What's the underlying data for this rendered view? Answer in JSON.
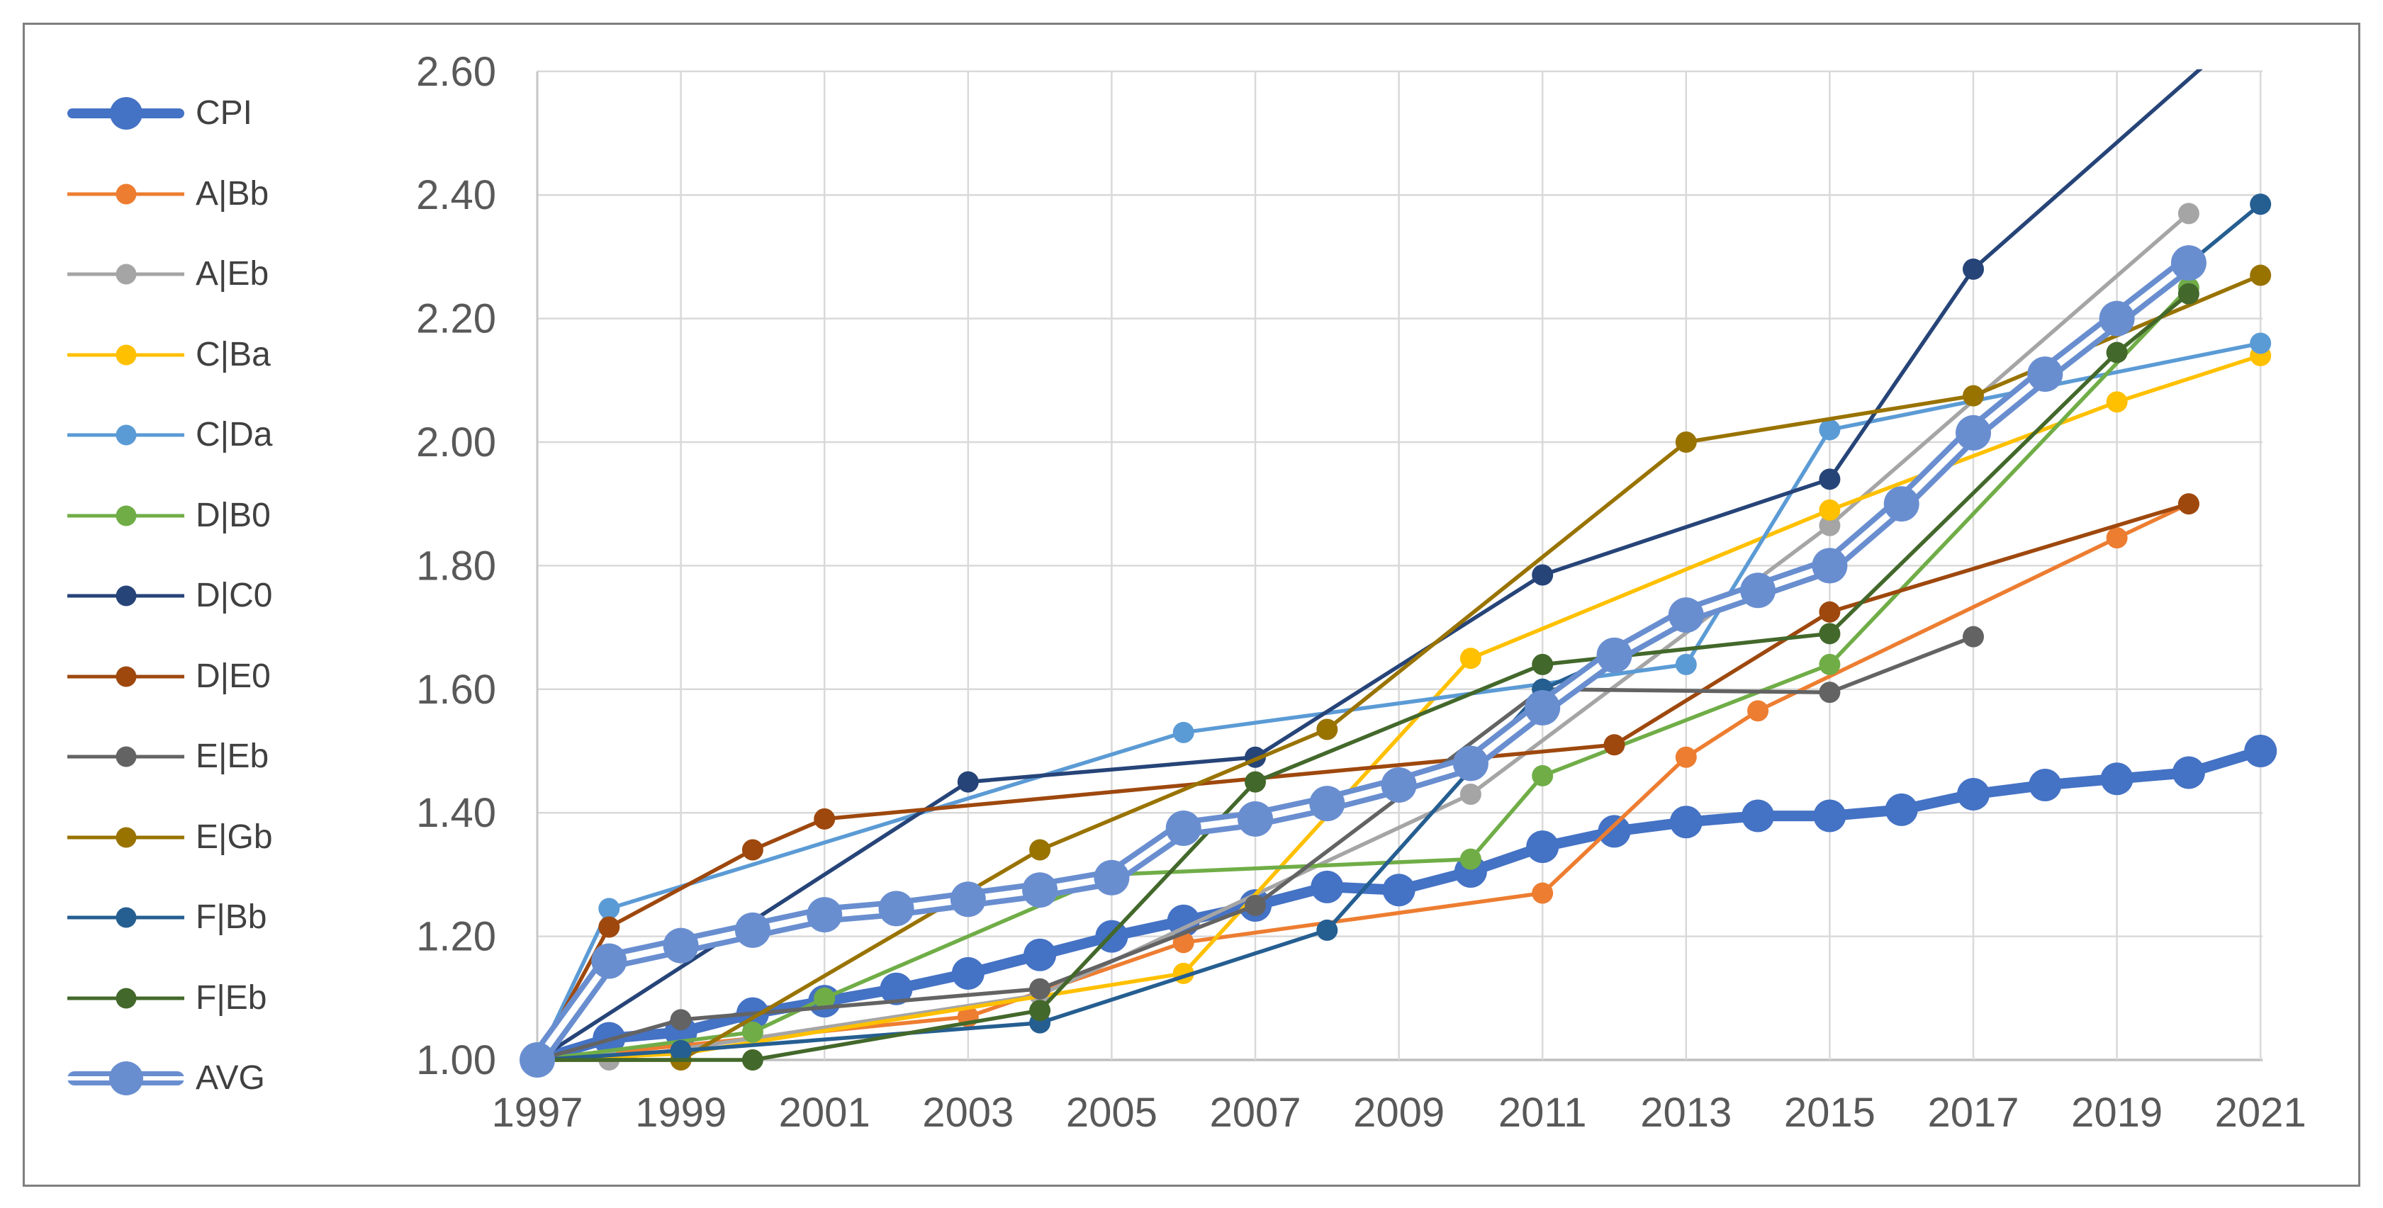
{
  "chart_data": {
    "type": "line",
    "title": "",
    "xlabel": "",
    "ylabel": "",
    "grid": "on",
    "legend_position": "left",
    "x_range": [
      1997,
      2021
    ],
    "y_range": [
      1.0,
      2.6
    ],
    "x_ticks": [
      "1997",
      "1999",
      "2001",
      "2003",
      "2005",
      "2007",
      "2009",
      "2011",
      "2013",
      "2015",
      "2017",
      "2019",
      "2021"
    ],
    "y_ticks": [
      "1.00",
      "1.20",
      "1.40",
      "1.60",
      "1.80",
      "2.00",
      "2.20",
      "2.40",
      "2.60"
    ],
    "series": [
      {
        "name": "CPI",
        "color": "#4472C4",
        "style": "cpi",
        "points": [
          [
            1997,
            1.0
          ],
          [
            1998,
            1.035
          ],
          [
            1999,
            1.045
          ],
          [
            2000,
            1.075
          ],
          [
            2001,
            1.095
          ],
          [
            2002,
            1.115
          ],
          [
            2003,
            1.14
          ],
          [
            2004,
            1.17
          ],
          [
            2005,
            1.2
          ],
          [
            2006,
            1.225
          ],
          [
            2007,
            1.25
          ],
          [
            2008,
            1.28
          ],
          [
            2009,
            1.275
          ],
          [
            2010,
            1.305
          ],
          [
            2011,
            1.345
          ],
          [
            2012,
            1.37
          ],
          [
            2013,
            1.385
          ],
          [
            2014,
            1.395
          ],
          [
            2015,
            1.395
          ],
          [
            2016,
            1.405
          ],
          [
            2017,
            1.43
          ],
          [
            2018,
            1.445
          ],
          [
            2019,
            1.455
          ],
          [
            2020,
            1.465
          ],
          [
            2021,
            1.5
          ]
        ]
      },
      {
        "name": "A|Bb",
        "color": "#ED7D31",
        "style": "normal",
        "points": [
          [
            1997,
            1.0
          ],
          [
            2003,
            1.07
          ],
          [
            2006,
            1.19
          ],
          [
            2011,
            1.27
          ],
          [
            2013,
            1.49
          ],
          [
            2014,
            1.565
          ],
          [
            2019,
            1.845
          ],
          [
            2020,
            1.9
          ]
        ]
      },
      {
        "name": "A|Eb",
        "color": "#A5A5A5",
        "style": "normal",
        "points": [
          [
            1997,
            1.0
          ],
          [
            1998,
            1.0
          ],
          [
            2004,
            1.105
          ],
          [
            2010,
            1.43
          ],
          [
            2015,
            1.865
          ],
          [
            2020,
            2.37
          ]
        ]
      },
      {
        "name": "C|Ba",
        "color": "#FFC000",
        "style": "normal",
        "points": [
          [
            1997,
            1.0
          ],
          [
            1999,
            1.01
          ],
          [
            2006,
            1.14
          ],
          [
            2010,
            1.65
          ],
          [
            2015,
            1.89
          ],
          [
            2019,
            2.065
          ],
          [
            2021,
            2.14
          ]
        ]
      },
      {
        "name": "C|Da",
        "color": "#5B9BD5",
        "style": "normal",
        "points": [
          [
            1997,
            1.0
          ],
          [
            1998,
            1.245
          ],
          [
            2006,
            1.53
          ],
          [
            2013,
            1.64
          ],
          [
            2015,
            2.02
          ],
          [
            2021,
            2.16
          ]
        ]
      },
      {
        "name": "D|B0",
        "color": "#70AD47",
        "style": "normal",
        "points": [
          [
            1997,
            1.0
          ],
          [
            2000,
            1.045
          ],
          [
            2001,
            1.1
          ],
          [
            2005,
            1.3
          ],
          [
            2010,
            1.325
          ],
          [
            2011,
            1.46
          ],
          [
            2015,
            1.64
          ],
          [
            2020,
            2.25
          ]
        ]
      },
      {
        "name": "D|C0",
        "color": "#264478",
        "style": "normal",
        "points": [
          [
            1997,
            1.0
          ],
          [
            2003,
            1.45
          ],
          [
            2007,
            1.49
          ],
          [
            2011,
            1.785
          ],
          [
            2015,
            1.94
          ],
          [
            2017,
            2.28
          ],
          [
            2021,
            2.69
          ]
        ]
      },
      {
        "name": "D|E0",
        "color": "#9E480E",
        "style": "normal",
        "points": [
          [
            1997,
            1.0
          ],
          [
            1998,
            1.215
          ],
          [
            2000,
            1.34
          ],
          [
            2001,
            1.39
          ],
          [
            2012,
            1.51
          ],
          [
            2015,
            1.725
          ],
          [
            2020,
            1.9
          ]
        ]
      },
      {
        "name": "E|Eb",
        "color": "#636363",
        "style": "normal",
        "points": [
          [
            1997,
            1.0
          ],
          [
            1999,
            1.065
          ],
          [
            2004,
            1.115
          ],
          [
            2007,
            1.25
          ],
          [
            2011,
            1.6
          ],
          [
            2015,
            1.595
          ],
          [
            2017,
            1.685
          ]
        ]
      },
      {
        "name": "E|Gb",
        "color": "#997300",
        "style": "normal",
        "points": [
          [
            1997,
            1.0
          ],
          [
            1999,
            1.0
          ],
          [
            2004,
            1.34
          ],
          [
            2008,
            1.535
          ],
          [
            2013,
            2.0
          ],
          [
            2017,
            2.075
          ],
          [
            2021,
            2.27
          ]
        ]
      },
      {
        "name": "F|Bb",
        "color": "#255E91",
        "style": "normal",
        "points": [
          [
            1997,
            1.0
          ],
          [
            1999,
            1.015
          ],
          [
            2004,
            1.06
          ],
          [
            2008,
            1.21
          ],
          [
            2011,
            1.6
          ],
          [
            2015,
            1.81
          ],
          [
            2021,
            2.385
          ]
        ]
      },
      {
        "name": "F|Eb",
        "color": "#43682B",
        "style": "normal",
        "points": [
          [
            1997,
            1.0
          ],
          [
            2000,
            1.0
          ],
          [
            2004,
            1.08
          ],
          [
            2007,
            1.45
          ],
          [
            2011,
            1.64
          ],
          [
            2015,
            1.69
          ],
          [
            2019,
            2.145
          ],
          [
            2020,
            2.24
          ]
        ]
      },
      {
        "name": "AVG",
        "color": "#698ED0",
        "style": "avg",
        "points": [
          [
            1997,
            1.0
          ],
          [
            1998,
            1.16
          ],
          [
            1999,
            1.185
          ],
          [
            2000,
            1.21
          ],
          [
            2001,
            1.235
          ],
          [
            2002,
            1.245
          ],
          [
            2003,
            1.26
          ],
          [
            2004,
            1.275
          ],
          [
            2005,
            1.295
          ],
          [
            2006,
            1.375
          ],
          [
            2007,
            1.39
          ],
          [
            2008,
            1.415
          ],
          [
            2009,
            1.445
          ],
          [
            2010,
            1.48
          ],
          [
            2011,
            1.57
          ],
          [
            2012,
            1.655
          ],
          [
            2013,
            1.72
          ],
          [
            2014,
            1.76
          ],
          [
            2015,
            1.8
          ],
          [
            2016,
            1.9
          ],
          [
            2017,
            2.015
          ],
          [
            2018,
            2.11
          ],
          [
            2019,
            2.2
          ],
          [
            2020,
            2.29
          ]
        ]
      }
    ]
  }
}
